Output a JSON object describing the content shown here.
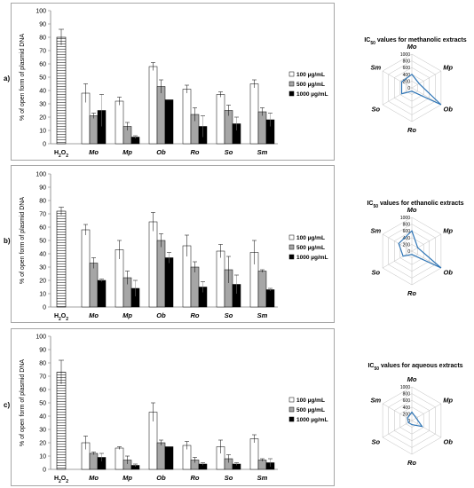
{
  "chart_data": [
    {
      "type": "bar",
      "panel": "a)",
      "ylabel": "% of open form of plasmid DNA",
      "ylim": [
        0,
        100
      ],
      "yticks": [
        0,
        10,
        20,
        30,
        40,
        50,
        60,
        70,
        80,
        90,
        100
      ],
      "control": {
        "label": "H2O2",
        "value": 80,
        "err": 6
      },
      "categories": [
        "Mo",
        "Mp",
        "Ob",
        "Ro",
        "So",
        "Sm"
      ],
      "series": [
        {
          "name": "100 µg/mL",
          "values": [
            38,
            32,
            58,
            41,
            37,
            45
          ],
          "errors": [
            7,
            3,
            3,
            3,
            2,
            3
          ]
        },
        {
          "name": "500 µg/mL",
          "values": [
            21,
            13,
            43,
            22,
            25,
            24
          ],
          "errors": [
            2,
            3,
            5,
            5,
            4,
            3
          ]
        },
        {
          "name": "1000 µg/mL",
          "values": [
            25,
            5,
            33,
            13,
            15,
            18
          ],
          "errors": [
            12,
            1,
            0,
            8,
            5,
            5
          ]
        }
      ],
      "radar": {
        "title_prefix": "IC",
        "title_sub": "50",
        "title_suffix": " values for methanolic extracts",
        "axes": [
          "Mo",
          "Mp",
          "Ob",
          "Ro",
          "So",
          "Sm"
        ],
        "rticks": [
          0,
          200,
          400,
          600,
          800,
          1000
        ],
        "rmax": 1000,
        "values": [
          400,
          250,
          1000,
          100,
          350,
          350
        ]
      }
    },
    {
      "type": "bar",
      "panel": "b)",
      "ylabel": "% of open form of plasmid DNA",
      "ylim": [
        0,
        100
      ],
      "yticks": [
        0,
        10,
        20,
        30,
        40,
        50,
        60,
        70,
        80,
        90,
        100
      ],
      "control": {
        "label": "H2O2",
        "value": 72,
        "err": 3
      },
      "categories": [
        "Mo",
        "Mp",
        "Ob",
        "Ro",
        "So",
        "Sm"
      ],
      "series": [
        {
          "name": "100 µg/mL",
          "values": [
            58,
            43,
            64,
            46,
            42,
            41
          ],
          "errors": [
            4,
            7,
            7,
            8,
            5,
            9
          ]
        },
        {
          "name": "500 µg/mL",
          "values": [
            33,
            22,
            50,
            30,
            28,
            27
          ],
          "errors": [
            4,
            5,
            5,
            4,
            10,
            1
          ]
        },
        {
          "name": "1000 µg/mL",
          "values": [
            20,
            14,
            37,
            15,
            17,
            13
          ],
          "errors": [
            1,
            6,
            4,
            4,
            7,
            1
          ]
        }
      ],
      "radar": {
        "title_prefix": "IC",
        "title_sub": "50",
        "title_suffix": " values for ethanolic extracts",
        "axes": [
          "Mo",
          "Mp",
          "Ob",
          "Ro",
          "So",
          "Sm"
        ],
        "rticks": [
          0,
          200,
          400,
          600,
          800,
          1000
        ],
        "rmax": 1000,
        "values": [
          600,
          200,
          1000,
          100,
          300,
          450
        ]
      }
    },
    {
      "type": "bar",
      "panel": "c)",
      "ylabel": "% of open form of plasmid DNA",
      "ylim": [
        0,
        100
      ],
      "yticks": [
        0,
        10,
        20,
        30,
        40,
        50,
        60,
        70,
        80,
        90,
        100
      ],
      "control": {
        "label": "H2O2",
        "value": 73,
        "err": 9
      },
      "categories": [
        "Mo",
        "Mp",
        "Ob",
        "Ro",
        "So",
        "Sm"
      ],
      "series": [
        {
          "name": "100 µg/mL",
          "values": [
            20,
            16,
            43,
            18,
            17,
            23
          ],
          "errors": [
            5,
            1,
            7,
            3,
            5,
            3
          ]
        },
        {
          "name": "500 µg/mL",
          "values": [
            12,
            7,
            20,
            7,
            8,
            7
          ],
          "errors": [
            1,
            3,
            2,
            2,
            3,
            1
          ]
        },
        {
          "name": "1000 µg/mL",
          "values": [
            9,
            3,
            17,
            4,
            4,
            5
          ],
          "errors": [
            3,
            1,
            0,
            1,
            1,
            3
          ]
        }
      ],
      "radar": {
        "title_prefix": "IC",
        "title_sub": "50",
        "title_suffix": " values for aqueous extracts",
        "axes": [
          "Mo",
          "Mp",
          "Ob",
          "Ro",
          "So",
          "Sm"
        ],
        "rticks": [
          0,
          200,
          400,
          600,
          800,
          1000
        ],
        "rmax": 1000,
        "values": [
          250,
          150,
          350,
          120,
          120,
          150
        ]
      }
    }
  ],
  "colors": {
    "series": [
      "#ffffff",
      "#a6a6a6",
      "#000000"
    ],
    "radar_line": "#2e75b6",
    "grid": "#bfbfbf",
    "frame": "#a6a6a6"
  }
}
